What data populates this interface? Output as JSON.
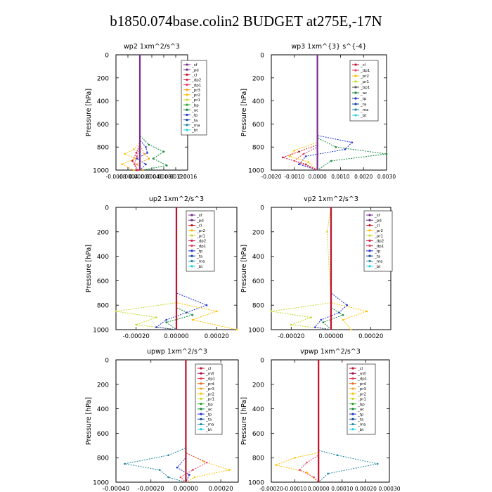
{
  "title": "b1850.074base.colin2  BUDGET at275E,-17N",
  "series_colors": {
    "_sf": "#7a2d90",
    "_pd": "#6a2a80",
    "_cl": "#c0102a",
    "_dp2": "#d42040",
    "_dp1": "#e84060",
    "_pr3": "#f2a020",
    "_pr2": "#ffc000",
    "_pr1": "#c8d830",
    "_bp": "#28a828",
    "_ac": "#108838",
    "_tp": "#2030d0",
    "_ta": "#1040a0",
    "_ma": "#2088a0",
    "_bt": "#20d0e8",
    "_mfl": "#a01050",
    "_pr4": "#e07020",
    "_dp4": "#c82050"
  },
  "chart_data": [
    {
      "type": "line",
      "title": "wp2   1xm^2/s^3",
      "ylabel": "Pressure  [hPa]",
      "xlim": [
        -0.0008,
        0.0016
      ],
      "ylim": [
        0,
        1000
      ],
      "y_reversed": true,
      "xticks": [
        -0.0008,
        -0.0004,
        0.0,
        0.0004,
        0.0008,
        0.0012,
        0.0016
      ],
      "xtick_labels": [
        "-0.0008",
        "-0.0004",
        "0.00000",
        "0.00040",
        "0.00080",
        "0.00120",
        "0.0016"
      ],
      "yticks": [
        0,
        200,
        400,
        600,
        800,
        1000
      ],
      "legend_entries": [
        "_sf",
        "_pd",
        "_cl",
        "_dp2",
        "_dp1",
        "_pr3",
        "_pr2",
        "_pr1",
        "_bp",
        "_ac",
        "_tp",
        "_ta",
        "_ma",
        "_bt"
      ],
      "legend_placement": "top-right",
      "series": [
        {
          "name": "_ac",
          "y": [
            0,
            700,
            780,
            840,
            900,
            960,
            1000
          ],
          "x": [
            0,
            0,
            0.0003,
            0.0008,
            0.00045,
            0.0009,
            0.0001
          ]
        },
        {
          "name": "_tp",
          "y": [
            0,
            740,
            800,
            850,
            900,
            950,
            1000
          ],
          "x": [
            0,
            0,
            0.0002,
            0.00025,
            -0.0001,
            0.0002,
            0
          ]
        },
        {
          "name": "_pr2",
          "y": [
            0,
            760,
            820,
            860,
            900,
            950,
            1000
          ],
          "x": [
            0,
            0,
            -0.0002,
            -0.0005,
            -0.00015,
            -0.0006,
            -0.0002
          ]
        },
        {
          "name": "_pr3",
          "y": [
            0,
            780,
            860,
            900,
            950,
            1000
          ],
          "x": [
            0,
            0,
            0.00015,
            0.0003,
            -0.0001,
            0.0001
          ]
        },
        {
          "name": "_cl",
          "y": [
            0,
            780,
            850,
            920,
            1000
          ],
          "x": [
            0,
            0,
            -0.00012,
            -0.00025,
            -0.0001
          ]
        },
        {
          "name": "_dp1",
          "y": [
            0,
            800,
            880,
            950,
            1000
          ],
          "x": [
            0,
            0,
            -0.0001,
            -0.00018,
            -5e-05
          ]
        },
        {
          "name": "_sf",
          "y": [
            0,
            1000
          ],
          "x": [
            0,
            0
          ]
        }
      ]
    },
    {
      "type": "line",
      "title": "wp3   1xm^{3} s^{-4}",
      "ylabel": "Pressure  [hPa]",
      "xlim": [
        -0.002,
        0.003
      ],
      "ylim": [
        0,
        1000
      ],
      "y_reversed": true,
      "xticks": [
        -0.002,
        -0.001,
        0.0,
        0.001,
        0.002,
        0.003
      ],
      "xtick_labels": [
        "-0.0020",
        "-0.0010",
        "0.0000",
        "0.0010",
        "0.0020",
        "0.0030"
      ],
      "yticks": [
        0,
        200,
        400,
        600,
        800,
        1000
      ],
      "legend_entries": [
        "_cl",
        "_dp1",
        "_pr2",
        "_pr1",
        "_bp1",
        "_ac",
        "_tp",
        "_ta",
        "_ma",
        "_bt"
      ],
      "legend_placement": "top-right",
      "series": [
        {
          "name": "_ac",
          "y": [
            0,
            720,
            800,
            860,
            920,
            1000
          ],
          "x": [
            0,
            0,
            0.0008,
            0.003,
            0.0006,
            0
          ]
        },
        {
          "name": "_tp",
          "y": [
            0,
            700,
            760,
            820,
            880,
            950,
            1000
          ],
          "x": [
            0,
            0,
            0.0015,
            0.0012,
            -0.0005,
            -0.0008,
            0
          ]
        },
        {
          "name": "_pr2",
          "y": [
            0,
            760,
            830,
            880,
            930,
            1000
          ],
          "x": [
            0,
            0,
            -0.001,
            -0.0012,
            -0.0004,
            0
          ]
        },
        {
          "name": "_cl",
          "y": [
            0,
            780,
            840,
            890,
            950,
            1000
          ],
          "x": [
            0,
            0,
            -0.0008,
            -0.0015,
            -0.0005,
            0
          ]
        },
        {
          "name": "_dp1",
          "y": [
            0,
            800,
            860,
            920,
            1000
          ],
          "x": [
            0,
            0,
            -0.0006,
            -0.001,
            0
          ]
        },
        {
          "name": "_sf",
          "y": [
            0,
            1000
          ],
          "x": [
            0,
            0
          ]
        }
      ]
    },
    {
      "type": "line",
      "title": "up2   1xm^2/s^3",
      "ylabel": "Pressure  [hPa]",
      "xlim": [
        -0.0003,
        0.0003
      ],
      "ylim": [
        0,
        1000
      ],
      "y_reversed": true,
      "xticks": [
        -0.0002,
        0.0,
        0.0002
      ],
      "xtick_labels": [
        "-0.00020",
        "0.00000",
        "0.00020"
      ],
      "yticks": [
        0,
        200,
        400,
        600,
        800,
        1000
      ],
      "legend_entries": [
        "_sf",
        "_pd",
        "_cl",
        "_pr2",
        "_pr1",
        "_dp2",
        "_dp1",
        "_tp",
        "_ta",
        "_ma",
        "_bt"
      ],
      "legend_placement": "top-right",
      "series": [
        {
          "name": "_pr1",
          "y": [
            0,
            200,
            780,
            850,
            900,
            960,
            1000
          ],
          "x": [
            0,
            0,
            0,
            -0.0003,
            -0.0001,
            -0.0002,
            0
          ]
        },
        {
          "name": "_tp",
          "y": [
            0,
            700,
            800,
            860,
            920,
            980,
            1000
          ],
          "x": [
            0,
            0,
            0.00015,
            5e-05,
            -5e-05,
            -0.0001,
            0
          ]
        },
        {
          "name": "_pr2",
          "y": [
            0,
            780,
            850,
            920,
            1000
          ],
          "x": [
            0,
            0,
            0.0002,
            8e-05,
            0.0003
          ]
        },
        {
          "name": "_ac",
          "y": [
            0,
            820,
            880,
            940,
            1000
          ],
          "x": [
            0,
            0,
            8e-05,
            -5e-05,
            0
          ]
        },
        {
          "name": "_cl",
          "y": [
            0,
            1000
          ],
          "x": [
            0,
            0
          ]
        }
      ]
    },
    {
      "type": "line",
      "title": "vp2   1xm^2/s^3",
      "ylabel": "Pressure  [hPa]",
      "xlim": [
        -0.0003,
        0.0003
      ],
      "ylim": [
        0,
        1000
      ],
      "y_reversed": true,
      "xticks": [
        -0.0002,
        0.0,
        0.0002
      ],
      "xtick_labels": [
        "-0.00020",
        "0.00000",
        "0.00020"
      ],
      "yticks": [
        0,
        200,
        400,
        600,
        800,
        1000
      ],
      "legend_entries": [
        "_sf",
        "_pd",
        "_cl",
        "_pr2",
        "_pr1",
        "_dp2",
        "_dp1",
        "_tp",
        "_ta",
        "_ma",
        "_bt"
      ],
      "legend_placement": "top-right",
      "series": [
        {
          "name": "_pr1",
          "y": [
            0,
            200,
            780,
            850,
            900,
            960,
            1000
          ],
          "x": [
            0,
            -2e-05,
            0,
            -0.0003,
            -0.0001,
            -0.0002,
            0
          ]
        },
        {
          "name": "_tp",
          "y": [
            0,
            700,
            800,
            860,
            920,
            980,
            1000
          ],
          "x": [
            0,
            0,
            8e-05,
            4e-05,
            -5e-05,
            -8e-05,
            0
          ]
        },
        {
          "name": "_pr2",
          "y": [
            0,
            780,
            850,
            920,
            1000
          ],
          "x": [
            0,
            0,
            0.00018,
            6e-05,
            0.0001
          ]
        },
        {
          "name": "_ac",
          "y": [
            0,
            820,
            880,
            940,
            1000
          ],
          "x": [
            0,
            0,
            6e-05,
            -4e-05,
            0
          ]
        },
        {
          "name": "_cl",
          "y": [
            0,
            1000
          ],
          "x": [
            0,
            0
          ]
        }
      ]
    },
    {
      "type": "line",
      "title": "upwp   1xm^2/s^3",
      "ylabel": "Pressure  [hPa]",
      "xlim": [
        -0.0004,
        0.0003
      ],
      "ylim": [
        0,
        1000
      ],
      "y_reversed": true,
      "xticks": [
        -0.0004,
        -0.0002,
        0.0,
        0.0002
      ],
      "xtick_labels": [
        "-0.00040",
        "-0.00020",
        "0.00000",
        "0.00020"
      ],
      "yticks": [
        0,
        200,
        400,
        600,
        800,
        1000
      ],
      "legend_entries": [
        "_cl",
        "_mfl",
        "_dp1",
        "_pr4",
        "_pr3",
        "_pr2",
        "_pr1",
        "_bp",
        "_ac",
        "_tp",
        "_ta",
        "_ma",
        "_bt"
      ],
      "legend_placement": "top-right",
      "series": [
        {
          "name": "_ma",
          "y": [
            0,
            720,
            780,
            850,
            900,
            960,
            1000
          ],
          "x": [
            0,
            0,
            -0.0001,
            -0.00035,
            -0.00015,
            -0.0001,
            0
          ]
        },
        {
          "name": "_pr2",
          "y": [
            0,
            760,
            830,
            900,
            960,
            1000
          ],
          "x": [
            0,
            0,
            0.0001,
            0.00025,
            5e-05,
            0
          ]
        },
        {
          "name": "_dp1",
          "y": [
            0,
            760,
            840,
            900,
            960,
            1000
          ],
          "x": [
            0,
            0,
            0.00012,
            4e-05,
            -3e-05,
            0
          ]
        },
        {
          "name": "_tp",
          "y": [
            0,
            800,
            880,
            940,
            1000
          ],
          "x": [
            0,
            0,
            -5e-05,
            2e-05,
            0
          ]
        },
        {
          "name": "_cl",
          "y": [
            0,
            1000
          ],
          "x": [
            0,
            0
          ]
        }
      ]
    },
    {
      "type": "line",
      "title": "vpwp   1xm^2/s^3",
      "ylabel": "Pressure  [hPa]",
      "xlim": [
        -0.0002,
        0.0003
      ],
      "ylim": [
        0,
        1000
      ],
      "y_reversed": true,
      "xticks": [
        -0.0002,
        -0.0001,
        0.0,
        0.0001,
        0.0002,
        0.0003
      ],
      "xtick_labels": [
        "-0.00020",
        "-0.00010",
        "0.00000",
        "0.00010",
        "0.00020",
        "0.00030"
      ],
      "yticks": [
        0,
        200,
        400,
        600,
        800,
        1000
      ],
      "legend_entries": [
        "_cl",
        "_mfl",
        "_dp1",
        "_pr4",
        "_pr3",
        "_pr2",
        "_pr1",
        "_bp",
        "_ac",
        "_tp",
        "_ta",
        "_ma",
        "_bt"
      ],
      "legend_placement": "top-right",
      "series": [
        {
          "name": "_ma",
          "y": [
            0,
            740,
            780,
            850,
            930,
            1000
          ],
          "x": [
            0,
            0,
            8e-05,
            0.00025,
            4e-05,
            0
          ]
        },
        {
          "name": "_pr2",
          "y": [
            0,
            760,
            800,
            860,
            920,
            1000
          ],
          "x": [
            0,
            0,
            -0.0001,
            -0.00018,
            -5e-05,
            0
          ]
        },
        {
          "name": "_dp1",
          "y": [
            0,
            780,
            840,
            900,
            960,
            1000
          ],
          "x": [
            0,
            0,
            -5e-05,
            -8e-05,
            -2e-05,
            0
          ]
        },
        {
          "name": "_cl",
          "y": [
            0,
            1000
          ],
          "x": [
            0,
            0
          ]
        }
      ]
    }
  ]
}
